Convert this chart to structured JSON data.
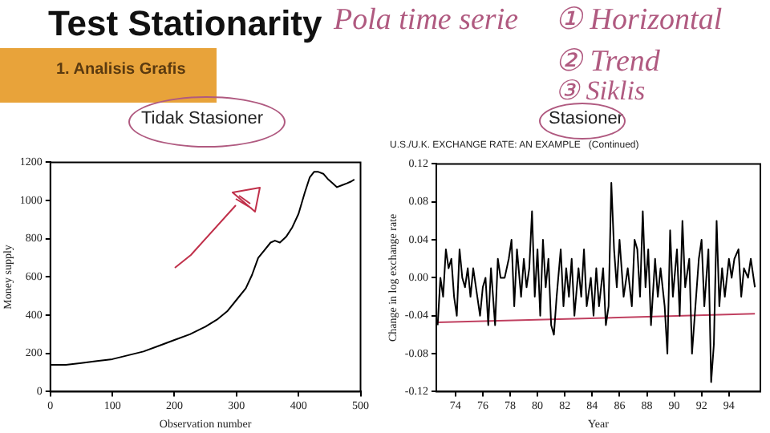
{
  "chart_data": [
    {
      "type": "line",
      "title": "Tidak Stasioner",
      "xlabel": "Observation number",
      "ylabel": "Money supply",
      "annotations": [
        "Test Stationarity",
        "1. Analisis Grafis",
        "Pola time serie",
        "① Horizontal",
        "② Trend",
        "③ Siklis"
      ],
      "x": [
        0,
        25,
        50,
        75,
        100,
        125,
        150,
        175,
        200,
        225,
        250,
        270,
        285,
        300,
        315,
        325,
        335,
        345,
        355,
        362,
        370,
        380,
        390,
        400,
        410,
        418,
        425,
        432,
        440,
        448,
        455,
        462,
        470,
        478,
        485,
        490
      ],
      "values": [
        140,
        140,
        150,
        160,
        170,
        190,
        210,
        240,
        270,
        300,
        340,
        380,
        420,
        480,
        540,
        610,
        700,
        740,
        780,
        790,
        780,
        810,
        860,
        930,
        1040,
        1120,
        1150,
        1150,
        1140,
        1110,
        1090,
        1070,
        1080,
        1090,
        1100,
        1110
      ],
      "color": "#000000",
      "xlim": [
        0,
        500
      ],
      "ylim": [
        0,
        1200
      ],
      "xticks": [
        0,
        100,
        200,
        300,
        400,
        500
      ],
      "yticks": [
        0,
        200,
        400,
        600,
        800,
        1000,
        1200
      ],
      "grid": false,
      "legend": false
    },
    {
      "type": "line",
      "title": "Stasioner",
      "subtitle": "U.S./U.K. EXCHANGE RATE: AN EXAMPLE   (Continued)",
      "xlabel": "Year",
      "ylabel": "Change in log exchange rate",
      "series": [
        {
          "color": "#000000",
          "x": [
            72.7,
            72.9,
            73.1,
            73.3,
            73.5,
            73.7,
            73.9,
            74.1,
            74.3,
            74.5,
            74.7,
            74.9,
            75.1,
            75.3,
            75.6,
            75.8,
            76.0,
            76.2,
            76.4,
            76.6,
            76.9,
            77.1,
            77.3,
            77.6,
            77.9,
            78.1,
            78.3,
            78.5,
            78.8,
            79.0,
            79.2,
            79.4,
            79.6,
            79.8,
            80.0,
            80.2,
            80.4,
            80.6,
            80.8,
            81.0,
            81.2,
            81.4,
            81.7,
            81.9,
            82.1,
            82.3,
            82.5,
            82.7,
            83.0,
            83.2,
            83.4,
            83.6,
            83.9,
            84.1,
            84.3,
            84.5,
            84.8,
            85.0,
            85.2,
            85.4,
            85.6,
            85.8,
            86.0,
            86.3,
            86.6,
            86.9,
            87.1,
            87.3,
            87.5,
            87.7,
            87.9,
            88.1,
            88.3,
            88.6,
            88.8,
            89.0,
            89.3,
            89.5,
            89.7,
            89.9,
            90.2,
            90.4,
            90.6,
            90.8,
            91.1,
            91.3,
            91.5,
            91.8,
            92.0,
            92.2,
            92.5,
            92.7,
            92.9,
            93.1,
            93.3,
            93.5,
            93.7,
            94.0,
            94.2,
            94.4,
            94.7,
            94.9,
            95.1,
            95.4,
            95.6,
            95.9
          ],
          "values": [
            -0.05,
            0.0,
            -0.02,
            0.03,
            0.01,
            0.02,
            -0.02,
            -0.04,
            0.03,
            0.0,
            -0.01,
            0.01,
            -0.02,
            0.01,
            -0.02,
            -0.04,
            -0.01,
            0.0,
            -0.05,
            0.01,
            -0.05,
            0.02,
            0.0,
            0.0,
            0.02,
            0.04,
            -0.03,
            0.03,
            -0.02,
            0.02,
            -0.01,
            0.01,
            0.07,
            -0.02,
            0.03,
            -0.04,
            0.04,
            -0.01,
            0.02,
            -0.05,
            -0.06,
            -0.02,
            0.03,
            -0.03,
            0.01,
            -0.02,
            0.02,
            -0.04,
            0.01,
            -0.02,
            0.03,
            -0.03,
            0.0,
            -0.04,
            0.01,
            -0.03,
            0.01,
            -0.05,
            -0.03,
            0.1,
            0.03,
            -0.01,
            0.04,
            -0.02,
            0.01,
            -0.03,
            0.04,
            0.03,
            -0.02,
            0.07,
            -0.01,
            0.03,
            -0.05,
            0.02,
            -0.02,
            0.01,
            -0.03,
            -0.08,
            0.05,
            -0.02,
            0.03,
            -0.04,
            0.06,
            -0.01,
            0.02,
            -0.08,
            -0.04,
            0.02,
            0.04,
            -0.03,
            0.03,
            -0.11,
            -0.07,
            0.06,
            -0.03,
            0.01,
            -0.02,
            0.02,
            0.0,
            0.02,
            0.03,
            -0.02,
            0.01,
            0.0,
            0.02,
            -0.01
          ]
        },
        {
          "color": "#c04060",
          "x": [
            72.7,
            95.9
          ],
          "values": [
            -0.047,
            -0.038
          ]
        }
      ],
      "xlim": [
        72.6,
        96.3
      ],
      "ylim": [
        -0.12,
        0.12
      ],
      "xticks": [
        74,
        76,
        78,
        80,
        82,
        84,
        86,
        88,
        90,
        92,
        94
      ],
      "yticks": [
        {
          "value": -0.12,
          "label": "-0.12"
        },
        {
          "value": -0.08,
          "label": "-0.08"
        },
        {
          "value": -0.04,
          "label": "-0.04"
        },
        {
          "value": 0,
          "label": "0.00"
        },
        0.04,
        0.08,
        0.12
      ],
      "grid": false,
      "legend": false
    }
  ]
}
